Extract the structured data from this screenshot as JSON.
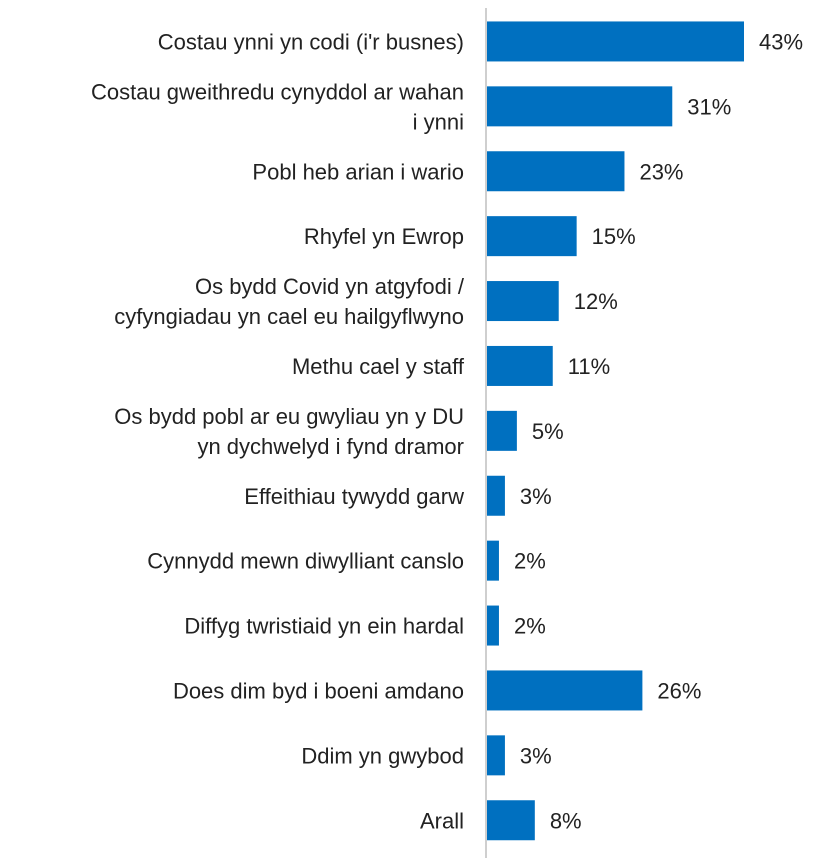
{
  "chart_data": {
    "type": "bar",
    "orientation": "horizontal",
    "bar_color": "#0070C0",
    "axis_color": "#BFBFBF",
    "grid": false,
    "value_suffix": "%",
    "categories": [
      [
        "Costau ynni yn codi (i'r busnes)"
      ],
      [
        "Costau gweithredu cynyddol ar wahan",
        "i ynni"
      ],
      [
        "Pobl heb arian i wario"
      ],
      [
        "Rhyfel yn Ewrop"
      ],
      [
        "Os bydd Covid yn atgyfodi /",
        "cyfyngiadau yn cael eu hailgyflwyno"
      ],
      [
        "Methu cael y staff"
      ],
      [
        "Os bydd pobl ar eu gwyliau yn y DU",
        "yn dychwelyd i fynd dramor"
      ],
      [
        "Effeithiau tywydd garw"
      ],
      [
        "Cynnydd mewn diwylliant canslo"
      ],
      [
        "Diffyg twristiaid yn ein hardal"
      ],
      [
        "Does dim byd i boeni amdano"
      ],
      [
        "Ddim yn gwybod"
      ],
      [
        "Arall"
      ]
    ],
    "values": [
      43,
      31,
      23,
      15,
      12,
      11,
      5,
      3,
      2,
      2,
      26,
      3,
      8
    ],
    "labels": [
      "43%",
      "31%",
      "23%",
      "15%",
      "12%",
      "11%",
      "5%",
      "3%",
      "2%",
      "2%",
      "26%",
      "3%",
      "8%"
    ],
    "xlim": [
      0,
      43
    ]
  }
}
